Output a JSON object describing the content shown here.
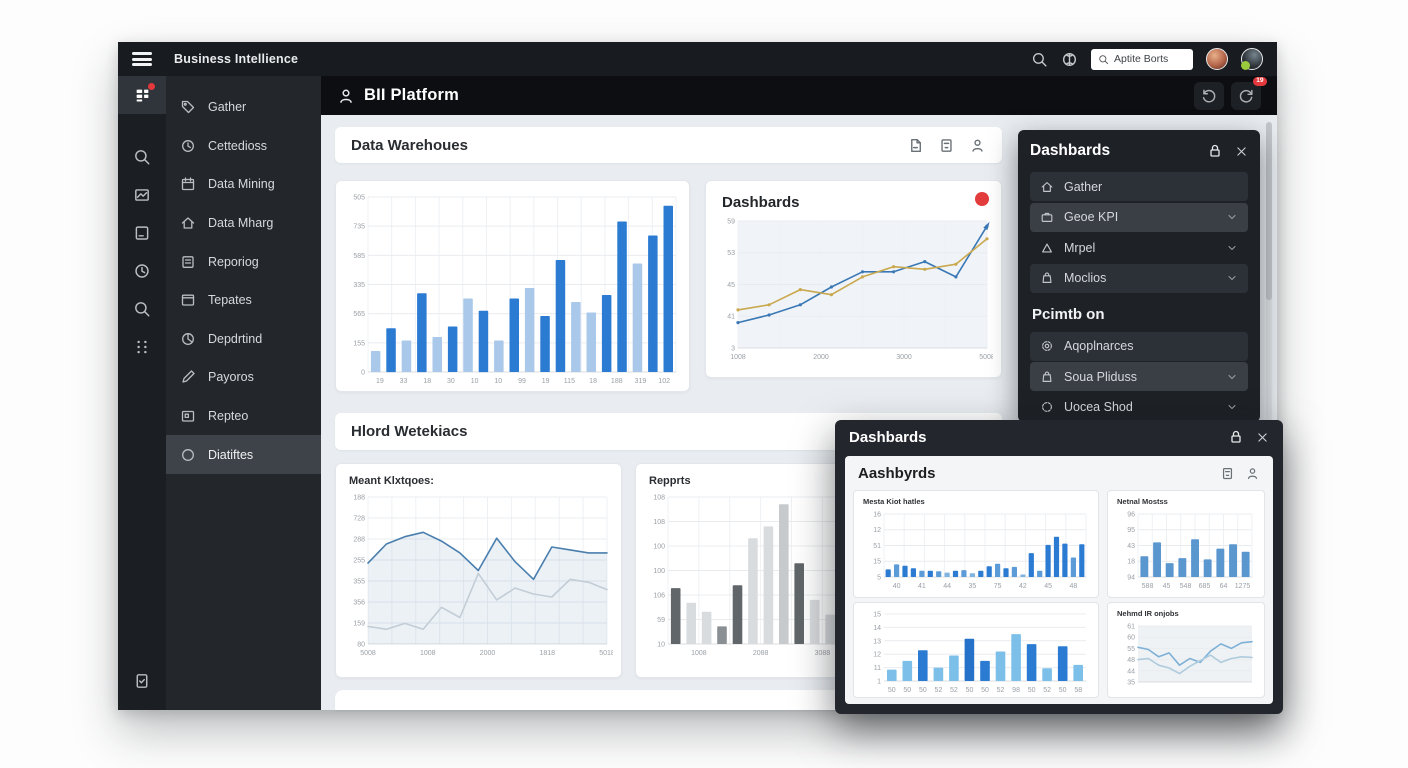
{
  "topbar": {
    "title": "Business Intellience",
    "search_value": "Aptite Borts"
  },
  "sidebar": {
    "items": [
      {
        "label": "Gather",
        "icon": "tag-icon"
      },
      {
        "label": "Cettedioss",
        "icon": "clock-icon"
      },
      {
        "label": "Data Mining",
        "icon": "calendar-icon"
      },
      {
        "label": "Data Mharg",
        "icon": "home-icon"
      },
      {
        "label": "Reporiog",
        "icon": "document-icon"
      },
      {
        "label": "Tepates",
        "icon": "window-icon"
      },
      {
        "label": "Depdrtind",
        "icon": "pie-icon"
      },
      {
        "label": "Payoros",
        "icon": "pencil-icon"
      },
      {
        "label": "Repteo",
        "icon": "card-icon"
      },
      {
        "label": "Diatiftes",
        "icon": "circle-icon"
      }
    ]
  },
  "main_header": {
    "title": "BII Platform",
    "badge": "19"
  },
  "warehouse_panel": {
    "title": "Data Warehoues"
  },
  "dash_card": {
    "title": "Dashbards"
  },
  "word_panel": {
    "title": "Hlord Wetekiacs"
  },
  "metric_card": {
    "title": "Meant Klxtqoes:"
  },
  "reports_card": {
    "title": "Repprts"
  },
  "right_panel": {
    "title": "Dashbards",
    "items": [
      {
        "label": "Gather",
        "icon": "home-icon"
      },
      {
        "label": "Geoe KPI",
        "icon": "briefcase-icon"
      },
      {
        "label": "Mrpel",
        "icon": "triangle-icon"
      },
      {
        "label": "Moclios",
        "icon": "bag-icon"
      }
    ],
    "section": "Pcimtb on",
    "section_items": [
      {
        "label": "Aqoplnarces",
        "icon": "gear-icon"
      },
      {
        "label": "Soua Pliduss",
        "icon": "bag-icon"
      },
      {
        "label": "Uocea Shod",
        "icon": "circle-icon"
      }
    ]
  },
  "modal": {
    "title": "Dashbards",
    "inner_title": "Aashbyrds",
    "chart_titles": [
      "Mesta Kiot hatles",
      "Netnal Mostss",
      "Nehmd IR onjobs"
    ]
  },
  "chart_data": [
    {
      "id": "warehouse_bars",
      "type": "bar",
      "title": "",
      "yticks": [
        "505",
        "735",
        "585",
        "335",
        "565",
        "155",
        "0"
      ],
      "xticks": [
        "19",
        "33",
        "18",
        "30",
        "10",
        "10",
        "99",
        "19",
        "115",
        "18",
        "188",
        "319",
        "102"
      ],
      "values": [
        12,
        25,
        18,
        45,
        20,
        26,
        42,
        35,
        18,
        42,
        48,
        32,
        64,
        40,
        34,
        44,
        86,
        62,
        78,
        95
      ],
      "colors": [
        "#a9c8ea",
        "#2b7bd3",
        "#a9c8ea",
        "#2b7bd3",
        "#a9c8ea",
        "#2b7bd3",
        "#a9c8ea",
        "#2b7bd3",
        "#a9c8ea",
        "#2b7bd3",
        "#a9c8ea",
        "#2b7bd3",
        "#2b7bd3",
        "#a9c8ea",
        "#a9c8ea",
        "#2b7bd3",
        "#2b7bd3",
        "#a9c8ea",
        "#2b7bd3",
        "#2b7bd3"
      ],
      "ylim": [
        0,
        100
      ],
      "vgrid": 13,
      "grid": true,
      "legend": "none"
    },
    {
      "id": "dash_lines",
      "type": "line",
      "title": "Dashbards",
      "yticks": [
        "59",
        "53",
        "45",
        "41",
        "3"
      ],
      "xticks": [
        "1008",
        "2000",
        "3000",
        "5008"
      ],
      "series": [
        {
          "name": "blue",
          "color": "#3a78b5",
          "values": [
            20,
            26,
            34,
            48,
            60,
            60,
            68,
            56,
            96
          ],
          "dots": true,
          "arrow": true
        },
        {
          "name": "gold",
          "color": "#c9a84e",
          "values": [
            30,
            34,
            46,
            42,
            56,
            64,
            62,
            66,
            86
          ],
          "dots": true
        }
      ],
      "ylim": [
        0,
        100
      ],
      "vgrid": 6,
      "plotbg": "#f0f4f8",
      "legend": "none"
    },
    {
      "id": "metric_lines",
      "type": "line",
      "title": "Meant Klxtqoes:",
      "yticks": [
        "188",
        "728",
        "288",
        "255",
        "355",
        "356",
        "159",
        "80"
      ],
      "xticks": [
        "5008",
        "1008",
        "2000",
        "1818",
        "5018"
      ],
      "series": [
        {
          "name": "primary",
          "color": "#4a7fae",
          "values": [
            55,
            68,
            73,
            76,
            70,
            62,
            50,
            72,
            56,
            44,
            66,
            64,
            62,
            62
          ],
          "area": "rgba(100,140,180,0.12)"
        },
        {
          "name": "secondary",
          "color": "#c3cdd6",
          "values": [
            12,
            10,
            14,
            10,
            25,
            18,
            48,
            30,
            38,
            34,
            32,
            44,
            42,
            37
          ]
        }
      ],
      "ylim": [
        0,
        100
      ],
      "vgrid": 10,
      "legend": "none"
    },
    {
      "id": "reports_bars",
      "type": "bar",
      "title": "Repprts",
      "yticks": [
        "108",
        "108",
        "100",
        "100",
        "106",
        "59",
        "10"
      ],
      "xticks": [
        "1008",
        "2088",
        "3088",
        "1108"
      ],
      "values": [
        38,
        28,
        22,
        12,
        40,
        72,
        80,
        95,
        55,
        30,
        20,
        35,
        15,
        48,
        42,
        45
      ],
      "colors": [
        "#606669",
        "#d9dcdf",
        "#d9dcdf",
        "#8a8f93",
        "#606669",
        "#d9dcdf",
        "#d9dcdf",
        "#c7cacd",
        "#606669",
        "#d9dcdf",
        "#d9dcdf",
        "#d9dcdf",
        "#606669",
        "#d9dcdf",
        "#d9dcdf",
        "#606669"
      ],
      "ylim": [
        0,
        100
      ],
      "vgrid": 8,
      "legend": "none"
    },
    {
      "id": "modal_bars1",
      "type": "bar",
      "title": "Mesta Kiot hatles",
      "yticks": [
        "16",
        "12",
        "51",
        "15",
        "5"
      ],
      "xticks": [
        "40",
        "41",
        "44",
        "35",
        "75",
        "42",
        "45",
        "48"
      ],
      "values": [
        12,
        20,
        18,
        14,
        10,
        10,
        9,
        7,
        10,
        11,
        6,
        10,
        17,
        21,
        14,
        16,
        4,
        38,
        10,
        51,
        64,
        53,
        31,
        52
      ],
      "colors": [
        "#2b7bd3",
        "#5b9bd8",
        "#2b7bd3",
        "#2b7bd3",
        "#5b9bd8",
        "#2b7bd3",
        "#5b9bd8",
        "#7fb3e0",
        "#2b7bd3",
        "#5b9bd8",
        "#7fb3e0",
        "#2b7bd3",
        "#2b7bd3",
        "#5b9bd8",
        "#2b7bd3",
        "#5b9bd8",
        "#7fb3e0",
        "#2b7bd3",
        "#5b9bd8",
        "#2b7bd3",
        "#2b7bd3",
        "#2b7bd3",
        "#5b9bd8",
        "#2b7bd3"
      ],
      "ylim": [
        0,
        100
      ],
      "vgrid": 10,
      "legend": "none"
    },
    {
      "id": "modal_bars2",
      "type": "bar",
      "title": "Netnal Mostss",
      "yticks": [
        "96",
        "95",
        "43",
        "18",
        "94"
      ],
      "xticks": [
        "588",
        "45",
        "548",
        "685",
        "64",
        "1275"
      ],
      "values": [
        33,
        55,
        22,
        30,
        60,
        28,
        45,
        52,
        40
      ],
      "color": "#5b97cf",
      "ylim": [
        0,
        100
      ],
      "vgrid": 8,
      "legend": "none"
    },
    {
      "id": "modal_bars3",
      "type": "bar",
      "title": "",
      "yticks": [
        "15",
        "14",
        "13",
        "12",
        "11",
        "1"
      ],
      "xticks": [
        "50",
        "50",
        "50",
        "52",
        "52",
        "50",
        "50",
        "52",
        "98",
        "50",
        "52",
        "50",
        "58"
      ],
      "values": [
        17,
        30,
        46,
        20,
        38,
        63,
        30,
        44,
        70,
        55,
        19,
        52,
        24
      ],
      "colors": [
        "#7cc0ea",
        "#7cc0ea",
        "#2b7bd3",
        "#7cc0ea",
        "#7cc0ea",
        "#2672c8",
        "#2b7bd3",
        "#7cc0ea",
        "#7cc0ea",
        "#2b7bd3",
        "#7cc0ea",
        "#2b7bd3",
        "#7cc0ea"
      ],
      "ylim": [
        0,
        100
      ],
      "legend": "none"
    },
    {
      "id": "modal_lines4",
      "type": "line",
      "title": "Nehmd IR onjobs",
      "yticks": [
        "61",
        "60",
        "55",
        "48",
        "44",
        "35"
      ],
      "xticks": [],
      "series": [
        {
          "name": "a",
          "color": "#7fb0d6",
          "values": [
            62,
            58,
            45,
            52,
            30,
            42,
            35,
            55,
            68,
            60,
            70,
            72
          ]
        },
        {
          "name": "b",
          "color": "#aecbdd",
          "values": [
            40,
            42,
            30,
            25,
            15,
            28,
            38,
            48,
            35,
            42,
            45,
            44
          ]
        }
      ],
      "ylim": [
        0,
        100
      ],
      "plotbg": "#eef2f5",
      "legend": "none"
    }
  ]
}
